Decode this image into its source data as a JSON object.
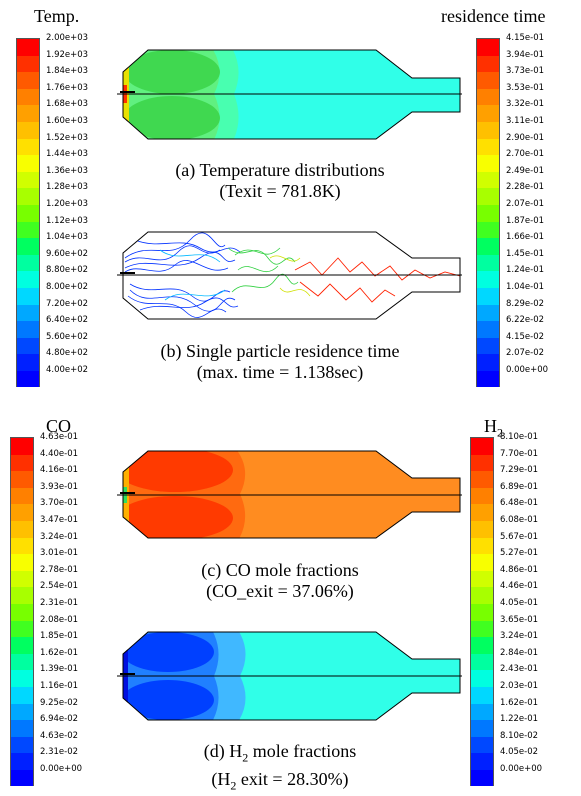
{
  "legends": {
    "temp": {
      "title": "Temp.",
      "labels": [
        "2.00e+03",
        "1.92e+03",
        "1.84e+03",
        "1.76e+03",
        "1.68e+03",
        "1.60e+03",
        "1.52e+03",
        "1.44e+03",
        "1.36e+03",
        "1.28e+03",
        "1.20e+03",
        "1.12e+03",
        "1.04e+03",
        "9.60e+02",
        "8.80e+02",
        "8.00e+02",
        "7.20e+02",
        "6.40e+02",
        "5.60e+02",
        "4.80e+02",
        "4.00e+02"
      ]
    },
    "residence": {
      "title": "residence time",
      "labels": [
        "4.15e-01",
        "3.94e-01",
        "3.73e-01",
        "3.53e-01",
        "3.32e-01",
        "3.11e-01",
        "2.90e-01",
        "2.70e-01",
        "2.49e-01",
        "2.28e-01",
        "2.07e-01",
        "1.87e-01",
        "1.66e-01",
        "1.45e-01",
        "1.24e-01",
        "1.04e-01",
        "8.29e-02",
        "6.22e-02",
        "4.15e-02",
        "2.07e-02",
        "0.00e+00"
      ]
    },
    "co": {
      "title": "CO",
      "labels": [
        "4.63e-01",
        "4.40e-01",
        "4.16e-01",
        "3.93e-01",
        "3.70e-01",
        "3.47e-01",
        "3.24e-01",
        "3.01e-01",
        "2.78e-01",
        "2.54e-01",
        "2.31e-01",
        "2.08e-01",
        "1.85e-01",
        "1.62e-01",
        "1.39e-01",
        "1.16e-01",
        "9.25e-02",
        "6.94e-02",
        "4.63e-02",
        "2.31e-02",
        "0.00e+00"
      ]
    },
    "h2": {
      "title_main": "H",
      "title_sub": "2",
      "labels": [
        "8.10e-01",
        "7.70e-01",
        "7.29e-01",
        "6.89e-01",
        "6.48e-01",
        "6.08e-01",
        "5.67e-01",
        "5.27e-01",
        "4.86e-01",
        "4.46e-01",
        "4.05e-01",
        "3.65e-01",
        "3.24e-01",
        "2.84e-01",
        "2.43e-01",
        "2.03e-01",
        "1.62e-01",
        "1.22e-01",
        "8.10e-02",
        "4.05e-02",
        "0.00e+00"
      ]
    }
  },
  "colormap": [
    "#ff0000",
    "#ff3000",
    "#ff5a00",
    "#ff8000",
    "#ffa000",
    "#ffc000",
    "#ffe000",
    "#f8ff00",
    "#d0ff00",
    "#a8ff00",
    "#78ff00",
    "#40ff20",
    "#00ff60",
    "#00ffa0",
    "#00ffe0",
    "#00d8ff",
    "#00a8ff",
    "#0078ff",
    "#0048ff",
    "#0020ff",
    "#0000ff"
  ],
  "captions": {
    "a": {
      "line1": "(a) Temperature distributions",
      "line2": "(Texit = 781.8K)"
    },
    "b": {
      "line1": "(b) Single particle residence time",
      "line2": "(max. time = 1.138sec)"
    },
    "c": {
      "line1": "(c) CO mole fractions",
      "line2": "(CO_exit = 37.06%)"
    },
    "d": {
      "line1_pre": "(d) H",
      "line1_sub": "2",
      "line1_post": " mole fractions",
      "line2_pre": "(H",
      "line2_sub": "2",
      "line2_post": " exit = 28.30%)"
    }
  }
}
